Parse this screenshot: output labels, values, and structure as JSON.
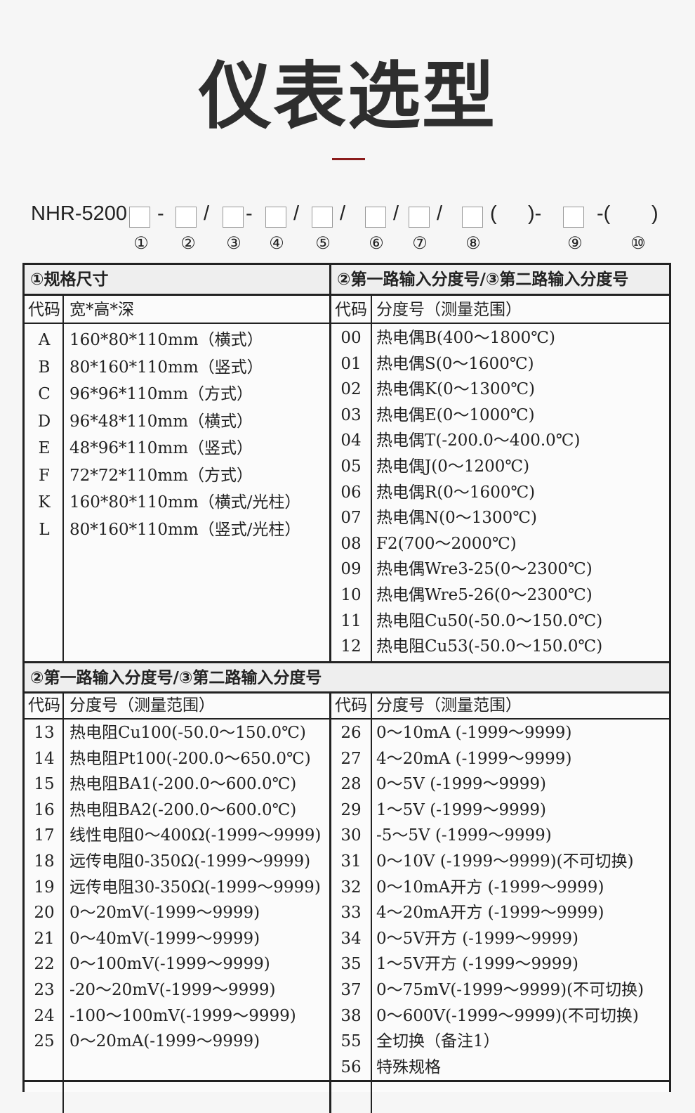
{
  "title": "仪表选型",
  "model": {
    "prefix": "NHR-5200",
    "separators": [
      "-",
      "/",
      "-",
      "/",
      "/",
      "/",
      "/",
      "(",
      ")-",
      "-(",
      ")"
    ],
    "numbers": [
      "①",
      "②",
      "③",
      "④",
      "⑤",
      "⑥",
      "⑦",
      "⑧",
      "⑨",
      "⑩"
    ]
  },
  "section1": {
    "left_header": "①规格尺寸",
    "right_header": "②第一路输入分度号/③第二路输入分度号",
    "left_sub": {
      "code": "代码",
      "desc": "宽*高*深"
    },
    "right_sub": {
      "code": "代码",
      "desc": "分度号（测量范围）"
    },
    "left_rows": [
      {
        "code": "A",
        "desc": "160*80*110mm（横式）"
      },
      {
        "code": "B",
        "desc": "80*160*110mm（竖式）"
      },
      {
        "code": "C",
        "desc": "96*96*110mm（方式）"
      },
      {
        "code": "D",
        "desc": "96*48*110mm（横式）"
      },
      {
        "code": "E",
        "desc": "48*96*110mm（竖式）"
      },
      {
        "code": "F",
        "desc": "72*72*110mm（方式）"
      },
      {
        "code": "K",
        "desc": "160*80*110mm（横式/光柱）"
      },
      {
        "code": "L",
        "desc": "80*160*110mm（竖式/光柱）"
      }
    ],
    "right_rows": [
      {
        "code": "00",
        "desc": "热电偶B(400～1800℃)"
      },
      {
        "code": "01",
        "desc": "热电偶S(0～1600℃)"
      },
      {
        "code": "02",
        "desc": "热电偶K(0～1300℃)"
      },
      {
        "code": "03",
        "desc": "热电偶E(0～1000℃)"
      },
      {
        "code": "04",
        "desc": "热电偶T(-200.0～400.0℃)"
      },
      {
        "code": "05",
        "desc": "热电偶J(0～1200℃)"
      },
      {
        "code": "06",
        "desc": "热电偶R(0～1600℃)"
      },
      {
        "code": "07",
        "desc": "热电偶N(0～1300℃)"
      },
      {
        "code": "08",
        "desc": "F2(700～2000℃)"
      },
      {
        "code": "09",
        "desc": "热电偶Wre3-25(0～2300℃)"
      },
      {
        "code": "10",
        "desc": "热电偶Wre5-26(0～2300℃)"
      },
      {
        "code": "11",
        "desc": "热电阻Cu50(-50.0～150.0℃)"
      },
      {
        "code": "12",
        "desc": "热电阻Cu53(-50.0～150.0℃)"
      }
    ]
  },
  "section2": {
    "header": "②第一路输入分度号/③第二路输入分度号",
    "left_sub": {
      "code": "代码",
      "desc": "分度号（测量范围）"
    },
    "right_sub": {
      "code": "代码",
      "desc": "分度号（测量范围）"
    },
    "left_rows": [
      {
        "code": "13",
        "desc": "热电阻Cu100(-50.0～150.0℃)"
      },
      {
        "code": "14",
        "desc": "热电阻Pt100(-200.0～650.0℃)"
      },
      {
        "code": "15",
        "desc": "热电阻BA1(-200.0～600.0℃)"
      },
      {
        "code": "16",
        "desc": "热电阻BA2(-200.0～600.0℃)"
      },
      {
        "code": "17",
        "desc": "线性电阻0～400Ω(-1999～9999)"
      },
      {
        "code": "18",
        "desc": "远传电阻0-350Ω(-1999～9999)"
      },
      {
        "code": "19",
        "desc": "远传电阻30-350Ω(-1999～9999)"
      },
      {
        "code": "20",
        "desc": "0～20mV(-1999～9999)"
      },
      {
        "code": "21",
        "desc": "0～40mV(-1999～9999)"
      },
      {
        "code": "22",
        "desc": "0～100mV(-1999～9999)"
      },
      {
        "code": "23",
        "desc": "-20～20mV(-1999～9999)"
      },
      {
        "code": "24",
        "desc": "-100～100mV(-1999～9999)"
      },
      {
        "code": "25",
        "desc": "0～20mA(-1999～9999)"
      }
    ],
    "right_rows": [
      {
        "code": "26",
        "desc": "0～10mA (-1999～9999)"
      },
      {
        "code": "27",
        "desc": "4～20mA (-1999～9999)"
      },
      {
        "code": "28",
        "desc": "0～5V (-1999～9999)"
      },
      {
        "code": "29",
        "desc": "1～5V (-1999～9999)"
      },
      {
        "code": "30",
        "desc": "-5～5V (-1999～9999)"
      },
      {
        "code": "31",
        "desc": "0～10V (-1999～9999)(不可切换)"
      },
      {
        "code": "32",
        "desc": "0～10mA开方 (-1999～9999)"
      },
      {
        "code": "33",
        "desc": "4～20mA开方 (-1999～9999)"
      },
      {
        "code": "34",
        "desc": "0～5V开方 (-1999～9999)"
      },
      {
        "code": "35",
        "desc": "1～5V开方 (-1999～9999)"
      },
      {
        "code": "37",
        "desc": "0～75mV(-1999～9999)(不可切换)"
      },
      {
        "code": "38",
        "desc": "0～600V(-1999～9999)(不可切换)"
      },
      {
        "code": "55",
        "desc": "全切换（备注1）"
      },
      {
        "code": "56",
        "desc": "特殊规格"
      }
    ]
  }
}
